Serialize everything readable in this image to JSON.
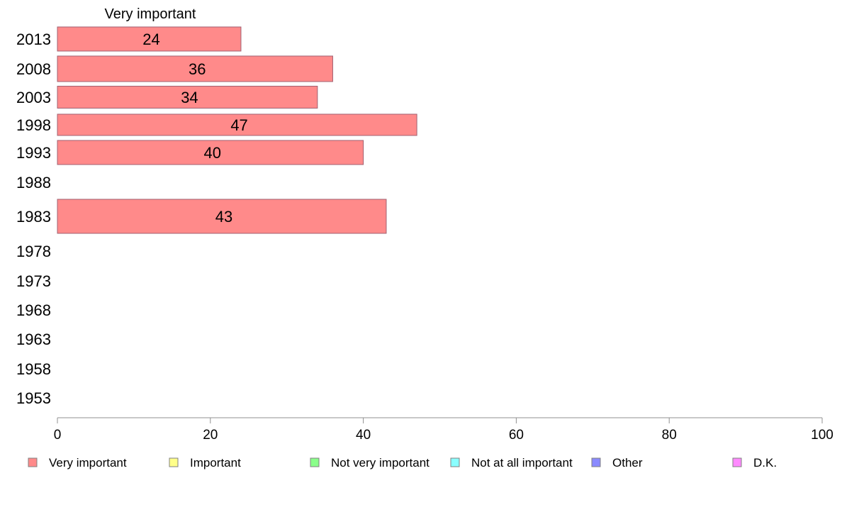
{
  "chart_data": {
    "type": "bar",
    "orientation": "horizontal",
    "series_title": "Very important",
    "categories": [
      "2013",
      "2008",
      "2003",
      "1998",
      "1993",
      "1988",
      "1983",
      "1978",
      "1973",
      "1968",
      "1963",
      "1958",
      "1953"
    ],
    "series": [
      {
        "name": "Very important",
        "color": "#ff8a8a",
        "values": [
          24,
          36,
          34,
          47,
          40,
          null,
          43,
          null,
          null,
          null,
          null,
          null,
          null
        ]
      }
    ],
    "xlim": [
      0,
      100
    ],
    "xticks": [
      0,
      20,
      40,
      60,
      80,
      100
    ],
    "grid": false,
    "legend_position": "bottom",
    "legend": [
      {
        "label": "Very important",
        "color": "#ff8a8a"
      },
      {
        "label": "Important",
        "color": "#ffff8a"
      },
      {
        "label": "Not very important",
        "color": "#8aff8a"
      },
      {
        "label": "Not at all important",
        "color": "#8affff"
      },
      {
        "label": "Other",
        "color": "#8a8aff"
      },
      {
        "label": "D.K.",
        "color": "#ff8aff"
      }
    ]
  }
}
